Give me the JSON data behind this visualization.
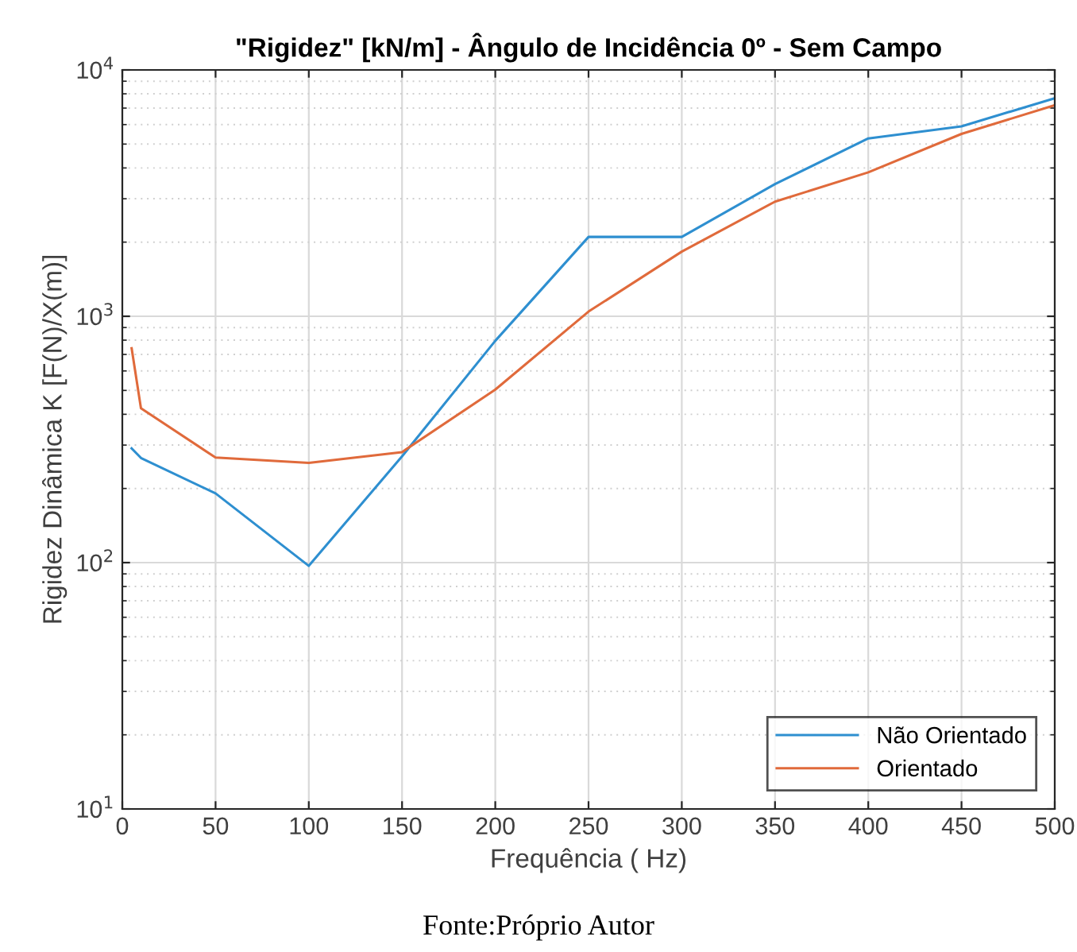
{
  "chart_data": {
    "type": "line",
    "title": "\"Rigidez\" [kN/m] - Ângulo de Incidência 0º - Sem Campo",
    "xlabel": "Frequência ( Hz)",
    "ylabel": "Rigidez Dinâmica K [F(N)/X(m)]",
    "x": [
      5,
      10,
      50,
      100,
      150,
      200,
      250,
      300,
      350,
      400,
      450,
      500
    ],
    "series": [
      {
        "name": "Não Orientado",
        "color": "#2e8fd0",
        "values": [
          291,
          266,
          191,
          97,
          270,
          795,
          2100,
          2100,
          3440,
          5270,
          5900,
          7680
        ]
      },
      {
        "name": "Orientado",
        "color": "#e06a3b",
        "values": [
          741,
          423,
          267,
          254,
          281,
          504,
          1045,
          1830,
          2920,
          3840,
          5500,
          7190
        ]
      }
    ],
    "log": "y",
    "xlim": [
      0,
      500
    ],
    "xticks": [
      0,
      50,
      100,
      150,
      200,
      250,
      300,
      350,
      400,
      450,
      500
    ],
    "ylim": [
      10,
      10000
    ],
    "yticks": [
      {
        "value": 10,
        "label": "10$^{1}$"
      },
      {
        "value": 100,
        "label": "10$^{2}$"
      },
      {
        "value": 1000,
        "label": "10$^{3}$"
      },
      {
        "value": 10000,
        "label": "10$^{4}$"
      }
    ],
    "grid": true,
    "legend": "bottom right",
    "line_style": "solid",
    "marker": "none",
    "annotations": [
      "Fonte:Próprio Autor"
    ]
  }
}
